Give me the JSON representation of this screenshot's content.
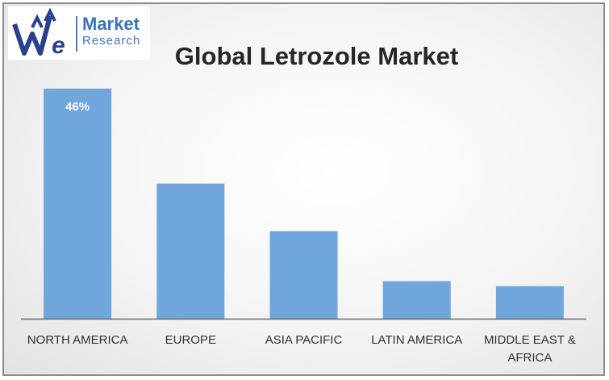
{
  "logo": {
    "line1": "Market",
    "line2": "Research"
  },
  "chart_data": {
    "type": "bar",
    "title": "Global Letrozole Market",
    "categories": [
      [
        "NORTH AMERICA"
      ],
      [
        "EUROPE"
      ],
      [
        "ASIA PACIFIC"
      ],
      [
        "LATIN AMERICA"
      ],
      [
        "MIDDLE EAST &",
        "AFRICA"
      ]
    ],
    "values": [
      46,
      27,
      17.5,
      7.5,
      6.5
    ],
    "data_labels": [
      "46%",
      "",
      "",
      "",
      ""
    ],
    "ylim": [
      0,
      50
    ],
    "grid": false,
    "legend": "none",
    "bar_color": "#6fa6dc"
  }
}
